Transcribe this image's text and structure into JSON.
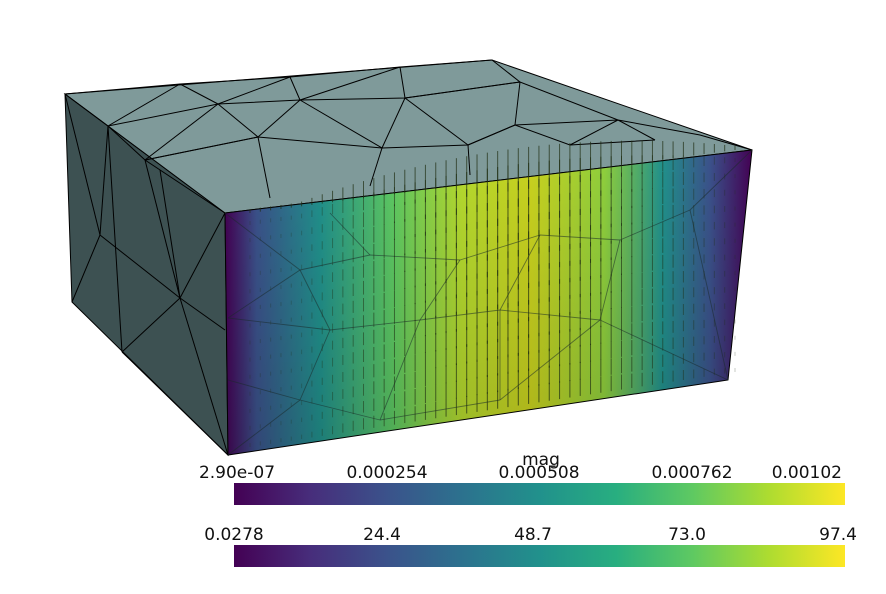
{
  "scene": {
    "colormap": "viridis",
    "box_face_color": "#7f9a9a",
    "box_side_color": "#3d5152",
    "edge_color": "#000000",
    "glyph_color": "#1f2e12",
    "background": "#ffffff"
  },
  "colorbars": [
    {
      "title": "mag",
      "tick_labels": [
        "2.90e-07",
        "0.000254",
        "0.000508",
        "0.000762",
        "0.00102"
      ]
    },
    {
      "title": "",
      "tick_labels": [
        "0.0278",
        "24.4",
        "48.7",
        "73.0",
        "97.4"
      ]
    }
  ]
}
